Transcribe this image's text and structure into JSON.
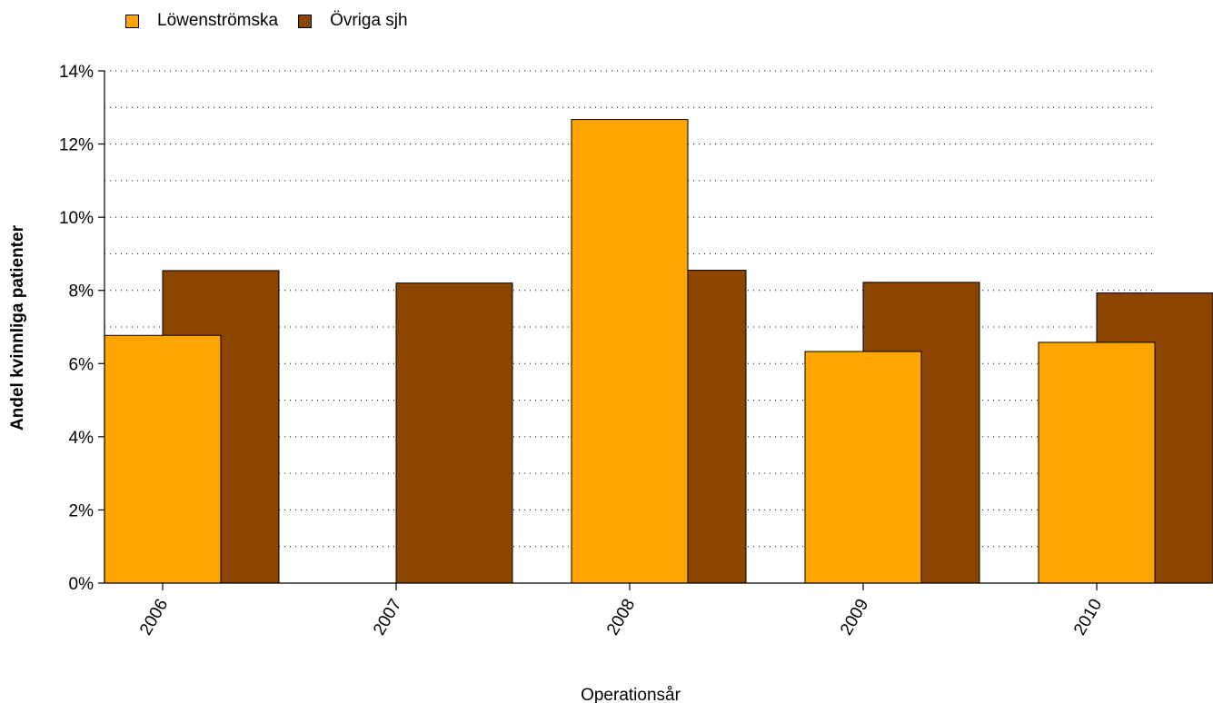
{
  "chart_data": {
    "type": "bar",
    "categories": [
      "2006",
      "2007",
      "2008",
      "2009",
      "2010"
    ],
    "series": [
      {
        "name": "Löwenströmska",
        "color": "#FFA500",
        "values": [
          6.77,
          0,
          12.67,
          6.33,
          6.58
        ]
      },
      {
        "name": "Övriga sjh",
        "color": "#8B4500",
        "values": [
          8.54,
          8.2,
          8.55,
          8.22,
          7.93
        ]
      }
    ],
    "xlabel": "Operationsår",
    "ylabel": "Andel kvinnliga patienter",
    "ylim": [
      0,
      14
    ],
    "y_ticks": [
      "0%",
      "2%",
      "4%",
      "6%",
      "8%",
      "10%",
      "12%",
      "14%"
    ],
    "y_tick_values": [
      0,
      2,
      4,
      6,
      8,
      10,
      12,
      14
    ],
    "y_minor_grid_values": [
      1,
      3,
      5,
      7,
      9,
      11,
      13
    ],
    "grid": "dotted-horizontal",
    "legend_position": "top-left"
  }
}
